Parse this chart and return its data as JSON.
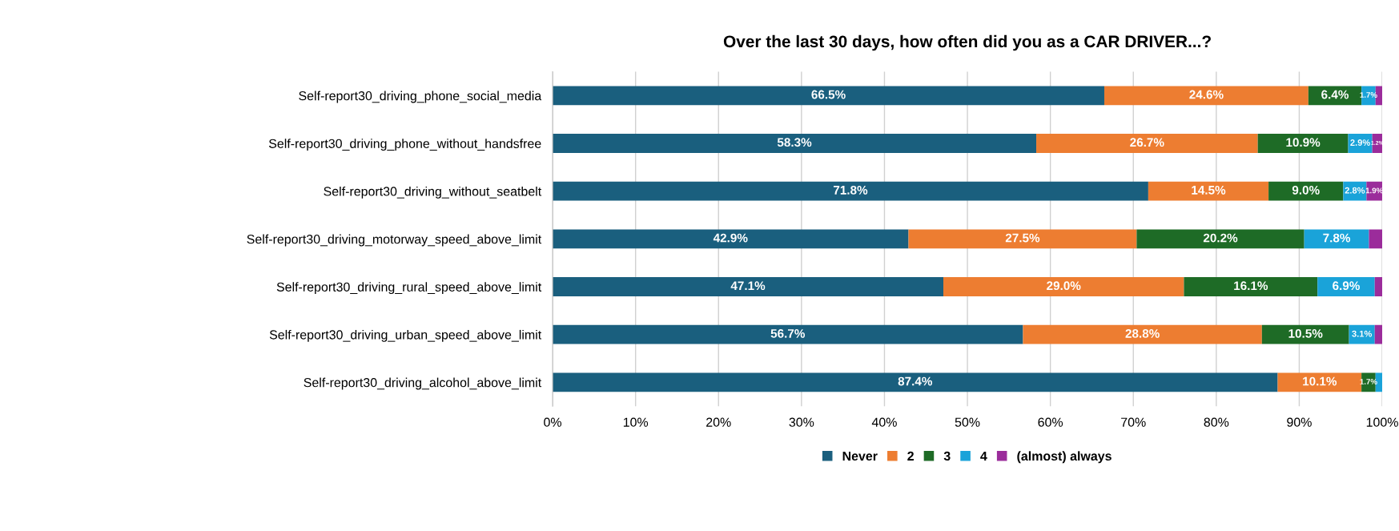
{
  "chart_data": {
    "type": "bar",
    "orientation": "horizontal",
    "stacked": true,
    "title": "Over the last 30 days, how often did you as a CAR DRIVER...?",
    "categories": [
      "Self-report30_driving_phone_social_media",
      "Self-report30_driving_phone_without_handsfree",
      "Self-report30_driving_without_seatbelt",
      "Self-report30_driving_motorway_speed_above_limit",
      "Self-report30_driving_rural_speed_above_limit",
      "Self-report30_driving_urban_speed_above_limit",
      "Self-report30_driving_alcohol_above_limit"
    ],
    "series": [
      {
        "name": "Never",
        "color": "#1a5f7e",
        "values": [
          66.5,
          58.3,
          71.8,
          42.9,
          47.1,
          56.7,
          87.4
        ],
        "value_labels": [
          "66.5%",
          "58.3%",
          "71.8%",
          "42.9%",
          "47.1%",
          "56.7%",
          "87.4%"
        ]
      },
      {
        "name": "2",
        "color": "#ed7d31",
        "values": [
          24.6,
          26.7,
          14.5,
          27.5,
          29.0,
          28.8,
          10.1
        ],
        "value_labels": [
          "24.6%",
          "26.7%",
          "14.5%",
          "27.5%",
          "29.0%",
          "28.8%",
          "10.1%"
        ]
      },
      {
        "name": "3",
        "color": "#1e6b26",
        "values": [
          6.4,
          10.9,
          9.0,
          20.2,
          16.1,
          10.5,
          1.7
        ],
        "value_labels": [
          "6.4%",
          "10.9%",
          "9.0%",
          "20.2%",
          "16.1%",
          "10.5%",
          "1.7%"
        ]
      },
      {
        "name": "4",
        "color": "#1aa3d9",
        "values": [
          1.7,
          2.9,
          2.8,
          7.8,
          6.9,
          3.1,
          0.8
        ],
        "value_labels": [
          "1.7%",
          "2.9%",
          "2.8%",
          "7.8%",
          "6.9%",
          "3.1%",
          null
        ]
      },
      {
        "name": "(almost) always",
        "color": "#9b2c9b",
        "values": [
          0.8,
          1.2,
          1.9,
          1.6,
          0.9,
          0.9,
          0
        ],
        "value_labels": [
          null,
          "1.2%",
          "1.9%",
          null,
          null,
          null,
          null
        ]
      }
    ],
    "xlim": [
      0,
      100
    ],
    "xticks": [
      {
        "value": 0,
        "label": "0%"
      },
      {
        "value": 10,
        "label": "10%"
      },
      {
        "value": 20,
        "label": "20%"
      },
      {
        "value": 30,
        "label": "30%"
      },
      {
        "value": 40,
        "label": "40%"
      },
      {
        "value": 50,
        "label": "50%"
      },
      {
        "value": 60,
        "label": "60%"
      },
      {
        "value": 70,
        "label": "70%"
      },
      {
        "value": 80,
        "label": "80%"
      },
      {
        "value": 90,
        "label": "90%"
      },
      {
        "value": 100,
        "label": "100%"
      }
    ],
    "grid": "x",
    "legend": "bottom"
  }
}
